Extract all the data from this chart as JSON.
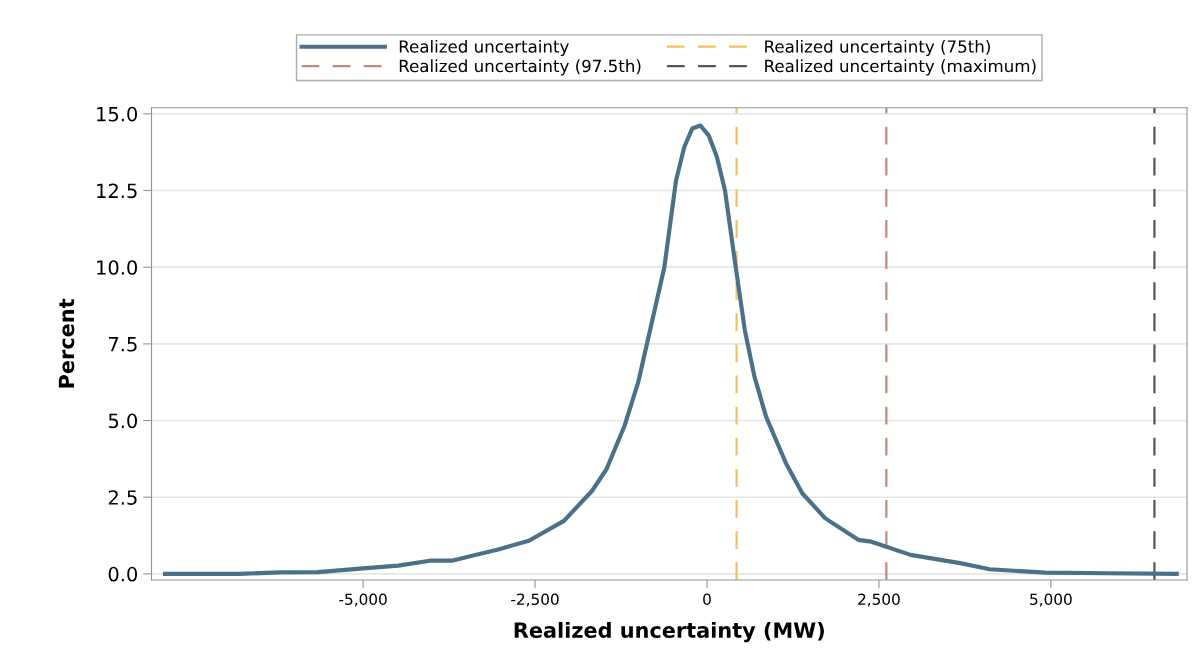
{
  "chart_data": {
    "type": "line",
    "xlabel": "Realized uncertainty (MW)",
    "ylabel": "Percent",
    "x": [
      -7880,
      -6800,
      -6220,
      -5660,
      -5000,
      -4490,
      -4030,
      -3710,
      -3310,
      -3050,
      -2590,
      -2080,
      -1670,
      -1460,
      -1200,
      -1000,
      -620,
      -450,
      -330,
      -215,
      -96,
      24,
      143,
      262,
      405,
      550,
      690,
      860,
      1150,
      1385,
      1720,
      2200,
      2390,
      2960,
      3680,
      4110,
      4920,
      5830,
      6830
    ],
    "series": [
      {
        "name": "Realized uncertainty",
        "color": "#4b7189",
        "values": [
          0.0,
          0.0,
          0.05,
          0.06,
          0.18,
          0.27,
          0.43,
          0.43,
          0.65,
          0.79,
          1.08,
          1.73,
          2.71,
          3.42,
          4.82,
          6.25,
          10.0,
          12.83,
          13.92,
          14.52,
          14.62,
          14.3,
          13.6,
          12.5,
          10.2,
          7.95,
          6.43,
          5.12,
          3.6,
          2.63,
          1.81,
          1.11,
          1.05,
          0.62,
          0.35,
          0.15,
          0.04,
          0.02,
          0.0
        ]
      }
    ],
    "ref_lines": [
      {
        "axis": "x",
        "value": 430,
        "label": "Realized uncertainty (75th)",
        "color": "#f5c060",
        "line_style": "dashed"
      },
      {
        "axis": "x",
        "value": 2608,
        "label": "Realized uncertainty (97.5th)",
        "color": "#c08a7c",
        "line_style": "dashed"
      },
      {
        "axis": "x",
        "value": 6506,
        "label": "Realized uncertainty (maximum)",
        "color": "#555555",
        "line_style": "dashed"
      }
    ],
    "xlim": [
      -8077,
      6980
    ],
    "ylim": [
      -0.2,
      15.2
    ],
    "xticks": [
      {
        "value": -5000,
        "label": "-5,000"
      },
      {
        "value": -2500,
        "label": "-2,500"
      },
      0,
      {
        "value": 2500,
        "label": "2,500"
      },
      {
        "value": 5000,
        "label": "5,000"
      }
    ],
    "yticks": [
      {
        "value": 0,
        "label": "0.0"
      },
      {
        "value": 2.5,
        "label": "2.5"
      },
      {
        "value": 5,
        "label": "5.0"
      },
      {
        "value": 7.5,
        "label": "7.5"
      },
      {
        "value": 10,
        "label": "10.0"
      },
      {
        "value": 12.5,
        "label": "12.5"
      },
      {
        "value": 15,
        "label": "15.0"
      }
    ],
    "grid": "y",
    "legend": "top",
    "marker": "none",
    "line_style": "solid"
  }
}
